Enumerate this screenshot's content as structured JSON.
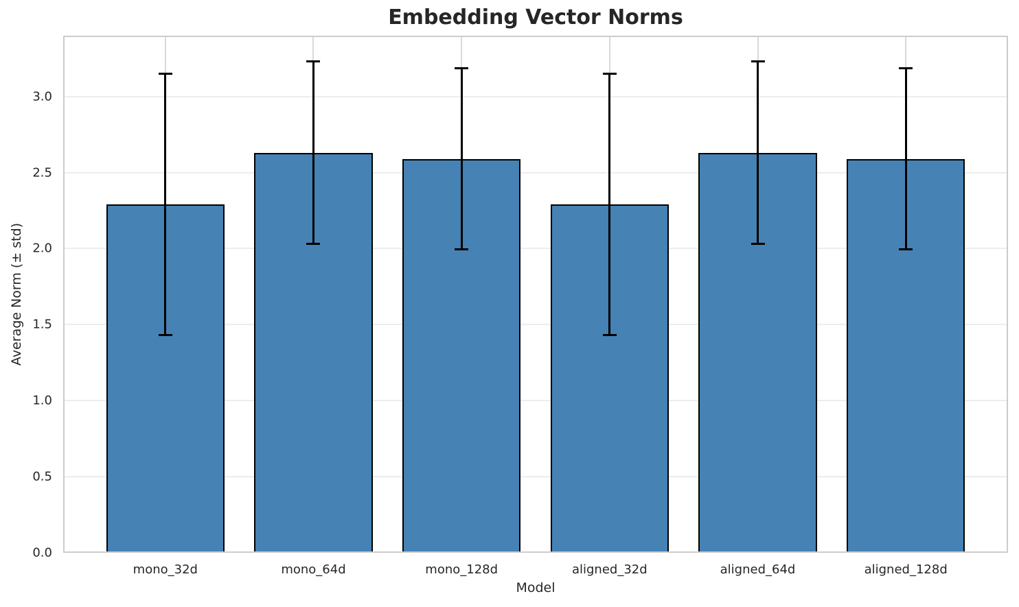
{
  "chart_data": {
    "type": "bar",
    "title": "Embedding Vector Norms",
    "xlabel": "Model",
    "ylabel": "Average Norm (± std)",
    "categories": [
      "mono_32d",
      "mono_64d",
      "mono_128d",
      "aligned_32d",
      "aligned_64d",
      "aligned_128d"
    ],
    "values": [
      2.29,
      2.63,
      2.59,
      2.29,
      2.63,
      2.59
    ],
    "errors": [
      0.86,
      0.6,
      0.595,
      0.86,
      0.6,
      0.595
    ],
    "yticks": [
      0.0,
      0.5,
      1.0,
      1.5,
      2.0,
      2.5,
      3.0
    ],
    "ylim": [
      0,
      3.4
    ],
    "grid": true,
    "legend_position": "none",
    "colors": {
      "bar_fill": "#4682b4",
      "bar_edge": "#000000",
      "error": "#000000",
      "grid_h": "#ededed",
      "grid_v": "#d9d9d9",
      "spine": "#cccccc",
      "text": "#262626",
      "background": "#ffffff"
    }
  }
}
